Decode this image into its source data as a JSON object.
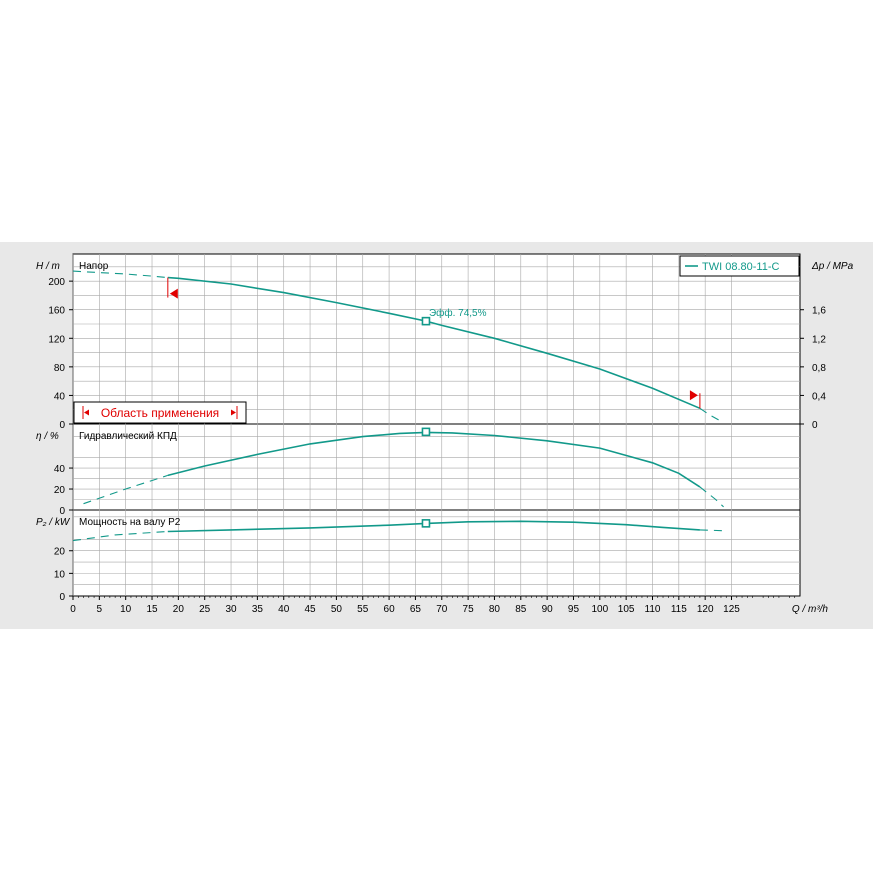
{
  "chart_data": {
    "type": "line",
    "title": "",
    "legend": {
      "label": "TWI 08.80-11-C",
      "placement": "top-right",
      "color": "#12998a"
    },
    "x_axis": {
      "label": "Q / m³/h",
      "ticks": [
        0,
        5,
        10,
        15,
        20,
        25,
        30,
        35,
        40,
        45,
        50,
        55,
        60,
        65,
        70,
        75,
        80,
        85,
        90,
        95,
        100,
        105,
        110,
        115,
        120,
        125
      ],
      "range": [
        0,
        138
      ]
    },
    "panels": [
      {
        "id": "head",
        "panel_label": "Напор",
        "ylabel": "H / m",
        "yticks": [
          0,
          40,
          80,
          120,
          160,
          200
        ],
        "ylim": [
          0,
          238
        ],
        "y2label": "Δp / MPa",
        "y2ticks": [
          "0",
          "0,4",
          "0,8",
          "1,2",
          "1,6"
        ],
        "y2_values": [
          0,
          0.4,
          0.8,
          1.2,
          1.6
        ],
        "series": [
          {
            "x": [
              0,
              5,
              10,
              15,
              18
            ],
            "y": [
              214,
              212,
              210,
              207,
              205
            ],
            "style": "dashed"
          },
          {
            "x": [
              18,
              20,
              30,
              40,
              50,
              60,
              67,
              70,
              80,
              90,
              100,
              110,
              119
            ],
            "y": [
              205,
              204,
              196,
              184,
              170,
              155,
              144,
              138,
              120,
              99,
              77,
              50,
              22
            ],
            "style": "solid"
          },
          {
            "x": [
              119,
              121,
              123.5
            ],
            "y": [
              22,
              12,
              2
            ],
            "style": "dashed"
          }
        ],
        "duty_point": {
          "x": 67,
          "y": 144,
          "label": "Эфф.  74,5%"
        },
        "range_markers": {
          "left_q": 18,
          "right_q": 119
        },
        "range_box": {
          "label": "Область применения"
        }
      },
      {
        "id": "efficiency",
        "panel_label": "Гидравлический КПД",
        "ylabel": "η / %",
        "yticks": [
          0,
          20,
          40
        ],
        "ylim": [
          0,
          82
        ],
        "series": [
          {
            "x": [
              2,
              10,
              18
            ],
            "y": [
              6,
              20,
              33
            ],
            "style": "dashed"
          },
          {
            "x": [
              18,
              25,
              35,
              45,
              55,
              62,
              67,
              72,
              80,
              90,
              100,
              110,
              115,
              119
            ],
            "y": [
              33,
              42,
              53,
              63,
              70,
              73,
              74,
              73.5,
              71,
              66,
              59,
              45,
              35,
              22
            ],
            "style": "solid"
          },
          {
            "x": [
              119,
              122,
              123.5
            ],
            "y": [
              22,
              10,
              3
            ],
            "style": "dashed"
          }
        ],
        "duty_point": {
          "x": 67,
          "y": 74.5
        }
      },
      {
        "id": "power",
        "panel_label": "Мощность на валу P2",
        "ylabel": "P₂ / kW",
        "yticks": [
          0,
          10,
          20
        ],
        "ylim": [
          0,
          38
        ],
        "series": [
          {
            "x": [
              0,
              8,
              18
            ],
            "y": [
              24.5,
              27,
              28.5
            ],
            "style": "dashed"
          },
          {
            "x": [
              18,
              30,
              45,
              60,
              67,
              75,
              85,
              95,
              105,
              112,
              119
            ],
            "y": [
              28.5,
              29.2,
              30.1,
              31.3,
              32.1,
              32.8,
              33,
              32.6,
              31.5,
              30.3,
              29.2
            ],
            "style": "solid"
          },
          {
            "x": [
              119,
              124
            ],
            "y": [
              29.2,
              28.8
            ],
            "style": "dashed"
          }
        ],
        "duty_point": {
          "x": 67,
          "y": 32.1
        }
      }
    ]
  }
}
